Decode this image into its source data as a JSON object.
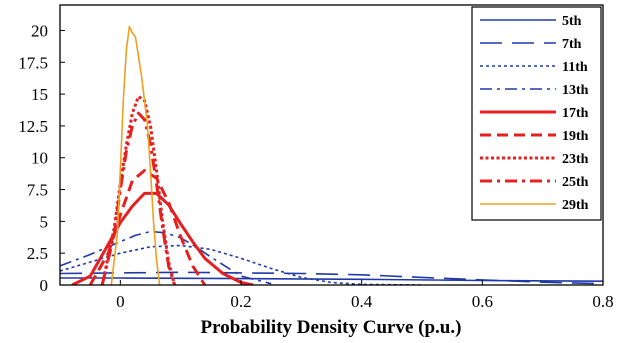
{
  "chart_data": {
    "type": "line",
    "title": "",
    "xlabel": "Probability  Density  Curve (p.u.)",
    "ylabel": "",
    "xlim": [
      -0.1,
      0.8
    ],
    "ylim": [
      0,
      22
    ],
    "grid": false,
    "legend_position": "top-right",
    "x_ticks": [
      0,
      0.2,
      0.4,
      0.6,
      0.8
    ],
    "x_tick_labels": [
      "0",
      "0.2",
      "0.4",
      "0.6",
      "0.8"
    ],
    "y_ticks": [
      0,
      2.5,
      5,
      7.5,
      10,
      12.5,
      15,
      17.5,
      20
    ],
    "y_tick_labels": [
      "0",
      "2.5",
      "5",
      "7.5",
      "10",
      "12.5",
      "15",
      "17.5",
      "20"
    ],
    "series": [
      {
        "name": "5th",
        "color": "#1f3aa8",
        "dash": "solid",
        "width": 1.6,
        "x": [
          -0.1,
          0.0,
          0.2,
          0.4,
          0.6,
          0.8
        ],
        "y": [
          0.55,
          0.55,
          0.5,
          0.45,
          0.35,
          0.3
        ]
      },
      {
        "name": "7th",
        "color": "#1f3aa8",
        "dash": "longdash",
        "width": 1.6,
        "x": [
          -0.1,
          0.0,
          0.1,
          0.2,
          0.3,
          0.4,
          0.5,
          0.6,
          0.7,
          0.8
        ],
        "y": [
          0.9,
          0.95,
          1.0,
          0.95,
          0.9,
          0.8,
          0.6,
          0.4,
          0.22,
          0.1
        ]
      },
      {
        "name": "11th",
        "color": "#1f3aa8",
        "dash": "dot",
        "width": 1.6,
        "x": [
          -0.1,
          -0.05,
          0.0,
          0.05,
          0.1,
          0.15,
          0.2,
          0.25,
          0.3,
          0.35,
          0.4,
          0.5
        ],
        "y": [
          1.1,
          1.8,
          2.5,
          3.0,
          3.1,
          2.8,
          2.1,
          1.3,
          0.6,
          0.2,
          0.05,
          0.0
        ]
      },
      {
        "name": "13th",
        "color": "#1f3aa8",
        "dash": "dashdot",
        "width": 1.6,
        "x": [
          -0.1,
          -0.05,
          0.0,
          0.025,
          0.05,
          0.075,
          0.1,
          0.125,
          0.15,
          0.2,
          0.25
        ],
        "y": [
          1.5,
          2.4,
          3.4,
          3.9,
          4.2,
          4.1,
          3.7,
          3.0,
          2.2,
          0.7,
          0.1
        ]
      },
      {
        "name": "17th",
        "color": "#e62020",
        "dash": "solid",
        "width": 3,
        "x": [
          -0.08,
          -0.05,
          -0.02,
          0.0,
          0.02,
          0.04,
          0.06,
          0.08,
          0.1,
          0.12,
          0.14,
          0.17,
          0.2,
          0.22
        ],
        "y": [
          0.0,
          0.7,
          3.2,
          4.9,
          6.2,
          7.2,
          7.2,
          6.3,
          4.8,
          3.4,
          2.1,
          0.9,
          0.2,
          0.0
        ]
      },
      {
        "name": "19th",
        "color": "#e62020",
        "dash": "dash",
        "width": 3,
        "x": [
          -0.05,
          -0.02,
          0.0,
          0.02,
          0.04,
          0.06,
          0.08,
          0.1,
          0.12,
          0.14
        ],
        "y": [
          0.0,
          2.5,
          5.5,
          8.2,
          9.0,
          8.4,
          6.5,
          3.8,
          1.5,
          0.0
        ]
      },
      {
        "name": "23th",
        "color": "#e62020",
        "dash": "dotthick",
        "width": 3,
        "x": [
          -0.03,
          -0.01,
          0.0,
          0.01,
          0.02,
          0.03,
          0.04,
          0.05,
          0.06,
          0.07,
          0.08,
          0.09
        ],
        "y": [
          0.0,
          4.5,
          8.0,
          11.0,
          13.5,
          14.8,
          14.5,
          12.5,
          9.0,
          5.0,
          1.8,
          0.0
        ]
      },
      {
        "name": "25th",
        "color": "#e62020",
        "dash": "dashdot",
        "width": 3,
        "x": [
          -0.03,
          -0.01,
          0.0,
          0.01,
          0.02,
          0.03,
          0.04,
          0.05,
          0.06,
          0.07,
          0.08,
          0.09
        ],
        "y": [
          0.0,
          4.0,
          7.5,
          10.5,
          12.5,
          13.5,
          13.0,
          11.0,
          8.0,
          4.5,
          1.5,
          0.0
        ]
      },
      {
        "name": "29th",
        "color": "#f0a020",
        "dash": "solid",
        "width": 1.6,
        "x": [
          -0.015,
          -0.005,
          0.0,
          0.005,
          0.01,
          0.015,
          0.02,
          0.025,
          0.03,
          0.035,
          0.04,
          0.045,
          0.05,
          0.055,
          0.06,
          0.065
        ],
        "y": [
          0.0,
          4.0,
          9.0,
          14.5,
          18.5,
          20.3,
          19.8,
          19.5,
          18.0,
          16.5,
          14.5,
          12.5,
          9.0,
          5.0,
          2.0,
          0.0
        ]
      }
    ]
  }
}
